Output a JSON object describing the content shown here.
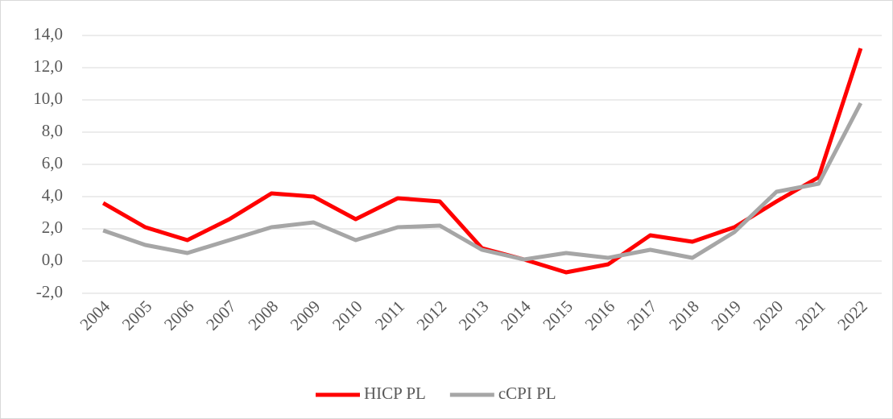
{
  "chart_data": {
    "type": "line",
    "categories": [
      "2004",
      "2005",
      "2006",
      "2007",
      "2008",
      "2009",
      "2010",
      "2011",
      "2012",
      "2013",
      "2014",
      "2015",
      "2016",
      "2017",
      "2018",
      "2019",
      "2020",
      "2021",
      "2022"
    ],
    "series": [
      {
        "name": "HICP PL",
        "color": "#ff0000",
        "values": [
          3.6,
          2.1,
          1.3,
          2.6,
          4.2,
          4.0,
          2.6,
          3.9,
          3.7,
          0.8,
          0.1,
          -0.7,
          -0.2,
          1.6,
          1.2,
          2.1,
          3.7,
          5.2,
          13.2
        ]
      },
      {
        "name": "cCPI PL",
        "color": "#a6a6a6",
        "values": [
          1.9,
          1.0,
          0.5,
          1.3,
          2.1,
          2.4,
          1.3,
          2.1,
          2.2,
          0.7,
          0.1,
          0.5,
          0.2,
          0.7,
          0.2,
          1.8,
          4.3,
          4.8,
          9.8
        ]
      }
    ],
    "ylim": [
      -2,
      14
    ],
    "yticks": [
      {
        "value": -2,
        "label": "-2,0"
      },
      {
        "value": 0,
        "label": "0,0"
      },
      {
        "value": 2,
        "label": "2,0"
      },
      {
        "value": 4,
        "label": "4,0"
      },
      {
        "value": 6,
        "label": "6,0"
      },
      {
        "value": 8,
        "label": "8,0"
      },
      {
        "value": 10,
        "label": "10,0"
      },
      {
        "value": 12,
        "label": "12,0"
      },
      {
        "value": 14,
        "label": "14,0"
      }
    ],
    "grid": true,
    "legend": "bottom"
  }
}
